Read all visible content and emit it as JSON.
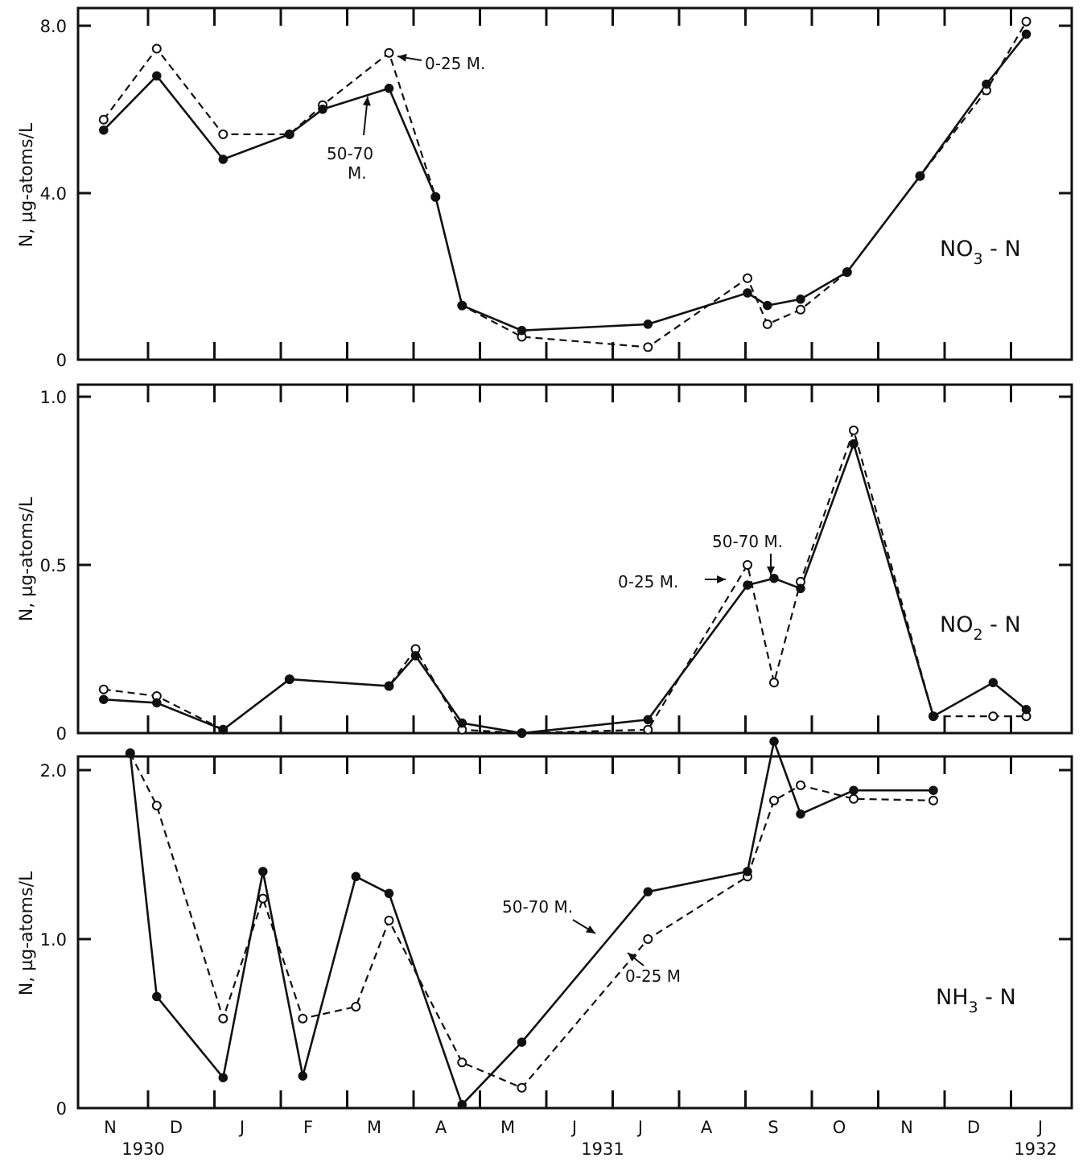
{
  "chart_data": [
    {
      "type": "line",
      "panel_label": "NO3 - N",
      "panel_label_main": "NO",
      "panel_label_sub": "3",
      "panel_label_rest": " - N",
      "ylabel": "N, µg-atoms/L",
      "yticks": [
        "8.0",
        "4.0",
        "0"
      ],
      "ytick_values": [
        8.0,
        4.0,
        0
      ],
      "ylim": [
        0,
        8.0
      ],
      "series": [
        {
          "name": "50-70 M.",
          "style": "solid",
          "marker": "filled",
          "x": [
            -0.1,
            0.7,
            1.7,
            2.7,
            3.2,
            4.2,
            4.9,
            5.3,
            6.2,
            8.1,
            9.6,
            9.9,
            10.4,
            11.1,
            12.2,
            13.2,
            13.8
          ],
          "y": [
            5.5,
            6.8,
            4.8,
            5.4,
            6.0,
            6.5,
            3.9,
            1.3,
            0.7,
            0.85,
            1.6,
            1.3,
            1.45,
            2.1,
            4.4,
            6.6,
            7.8
          ]
        },
        {
          "name": "0-25 M.",
          "style": "dashed",
          "marker": "open",
          "x": [
            -0.1,
            0.7,
            1.7,
            2.7,
            3.2,
            4.2,
            4.9,
            5.3,
            6.2,
            8.1,
            9.6,
            9.9,
            10.4,
            11.1,
            12.2,
            13.2,
            13.8
          ],
          "y": [
            5.75,
            7.45,
            5.4,
            5.4,
            6.1,
            7.35,
            3.9,
            1.3,
            0.55,
            0.3,
            1.95,
            0.85,
            1.2,
            2.1,
            4.4,
            6.45,
            8.1
          ]
        }
      ],
      "annotations": [
        {
          "text": "0-25 M."
        },
        {
          "text": "50-70"
        },
        {
          "text": "M."
        }
      ]
    },
    {
      "type": "line",
      "panel_label": "NO2 - N",
      "panel_label_main": "NO",
      "panel_label_sub": "2",
      "panel_label_rest": " - N",
      "ylabel": "N, µg-atoms/L",
      "yticks": [
        "1.0",
        "0.5",
        "0"
      ],
      "ytick_values": [
        1.0,
        0.5,
        0
      ],
      "ylim": [
        0,
        1.0
      ],
      "series": [
        {
          "name": "50-70 M.",
          "style": "solid",
          "marker": "filled",
          "x": [
            -0.1,
            0.7,
            1.7,
            2.7,
            4.2,
            4.6,
            5.3,
            6.2,
            8.1,
            9.6,
            10.0,
            10.4,
            11.2,
            12.4,
            13.3,
            13.8
          ],
          "y": [
            0.1,
            0.09,
            0.01,
            0.16,
            0.14,
            0.23,
            0.03,
            0.0,
            0.04,
            0.44,
            0.46,
            0.43,
            0.86,
            0.05,
            0.15,
            0.07
          ]
        },
        {
          "name": "0-25 M.",
          "style": "dashed",
          "marker": "open",
          "x": [
            -0.1,
            0.7,
            1.7,
            2.7,
            4.2,
            4.6,
            5.3,
            6.2,
            8.1,
            9.6,
            10.0,
            10.4,
            11.2,
            12.4,
            13.3,
            13.8
          ],
          "y": [
            0.13,
            0.11,
            0.01,
            0.16,
            0.14,
            0.25,
            0.01,
            0.0,
            0.01,
            0.5,
            0.15,
            0.45,
            0.9,
            0.05,
            0.05,
            0.05
          ]
        }
      ],
      "annotations": [
        {
          "text": "50-70 M."
        },
        {
          "text": "0-25 M."
        }
      ]
    },
    {
      "type": "line",
      "panel_label": "NH3 - N",
      "panel_label_main": "NH",
      "panel_label_sub": "3",
      "panel_label_rest": " - N",
      "ylabel": "N, µg-atoms/L",
      "yticks": [
        "2.0",
        "1.0",
        "0"
      ],
      "ytick_values": [
        2.0,
        1.0,
        0
      ],
      "ylim": [
        0,
        2.0
      ],
      "series": [
        {
          "name": "50-70 M.",
          "style": "solid",
          "marker": "filled",
          "x": [
            0.3,
            0.7,
            1.7,
            2.3,
            2.9,
            3.7,
            4.2,
            5.3,
            6.2,
            8.1,
            9.6,
            10.0,
            10.4,
            11.2,
            12.4
          ],
          "y": [
            2.1,
            0.66,
            0.18,
            1.4,
            0.19,
            1.37,
            1.27,
            0.02,
            0.39,
            1.28,
            1.4,
            2.17,
            1.74,
            1.88,
            1.88
          ]
        },
        {
          "name": "0-25 M.",
          "style": "dashed",
          "marker": "open",
          "x": [
            0.3,
            0.7,
            1.7,
            2.3,
            2.9,
            3.7,
            4.2,
            5.3,
            6.2,
            8.1,
            9.6,
            10.0,
            10.4,
            11.2,
            12.4
          ],
          "y": [
            2.1,
            1.79,
            0.53,
            1.24,
            0.53,
            0.6,
            1.11,
            0.27,
            0.12,
            1.0,
            1.37,
            1.82,
            1.91,
            1.83,
            1.82
          ]
        }
      ],
      "annotations": [
        {
          "text": "50-70 M."
        },
        {
          "text": "0-25 M"
        }
      ]
    }
  ],
  "x_axis": {
    "month_labels": [
      "N",
      "D",
      "J",
      "F",
      "M",
      "A",
      "M",
      "J",
      "J",
      "A",
      "S",
      "O",
      "N",
      "D",
      "J"
    ],
    "year_labels": [
      "1930",
      "1931",
      "1932"
    ]
  }
}
